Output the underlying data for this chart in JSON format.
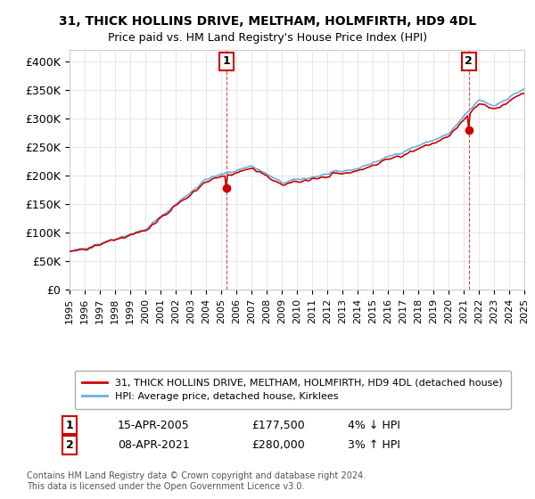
{
  "title1": "31, THICK HOLLINS DRIVE, MELTHAM, HOLMFIRTH, HD9 4DL",
  "title2": "Price paid vs. HM Land Registry's House Price Index (HPI)",
  "legend_line1": "31, THICK HOLLINS DRIVE, MELTHAM, HOLMFIRTH, HD9 4DL (detached house)",
  "legend_line2": "HPI: Average price, detached house, Kirklees",
  "annotation1_label": "1",
  "annotation1_date": "15-APR-2005",
  "annotation1_price": "£177,500",
  "annotation1_hpi": "4% ↓ HPI",
  "annotation2_label": "2",
  "annotation2_date": "08-APR-2021",
  "annotation2_price": "£280,000",
  "annotation2_hpi": "3% ↑ HPI",
  "footer": "Contains HM Land Registry data © Crown copyright and database right 2024.\nThis data is licensed under the Open Government Licence v3.0.",
  "hpi_color": "#6ab0e0",
  "price_color": "#cc0000",
  "annotation_color": "#cc0000",
  "bg_color": "#ffffff",
  "grid_color": "#dddddd",
  "ylim": [
    0,
    420000
  ],
  "yticks": [
    0,
    50000,
    100000,
    150000,
    200000,
    250000,
    300000,
    350000,
    400000
  ],
  "ytick_labels": [
    "£0",
    "£50K",
    "£100K",
    "£150K",
    "£200K",
    "£250K",
    "£300K",
    "£350K",
    "£400K"
  ],
  "xmin_year": 1995,
  "xmax_year": 2025,
  "xtick_years": [
    1995,
    1996,
    1997,
    1998,
    1999,
    2000,
    2001,
    2002,
    2003,
    2004,
    2005,
    2006,
    2007,
    2008,
    2009,
    2010,
    2011,
    2012,
    2013,
    2014,
    2015,
    2016,
    2017,
    2018,
    2019,
    2020,
    2021,
    2022,
    2023,
    2024,
    2025
  ]
}
